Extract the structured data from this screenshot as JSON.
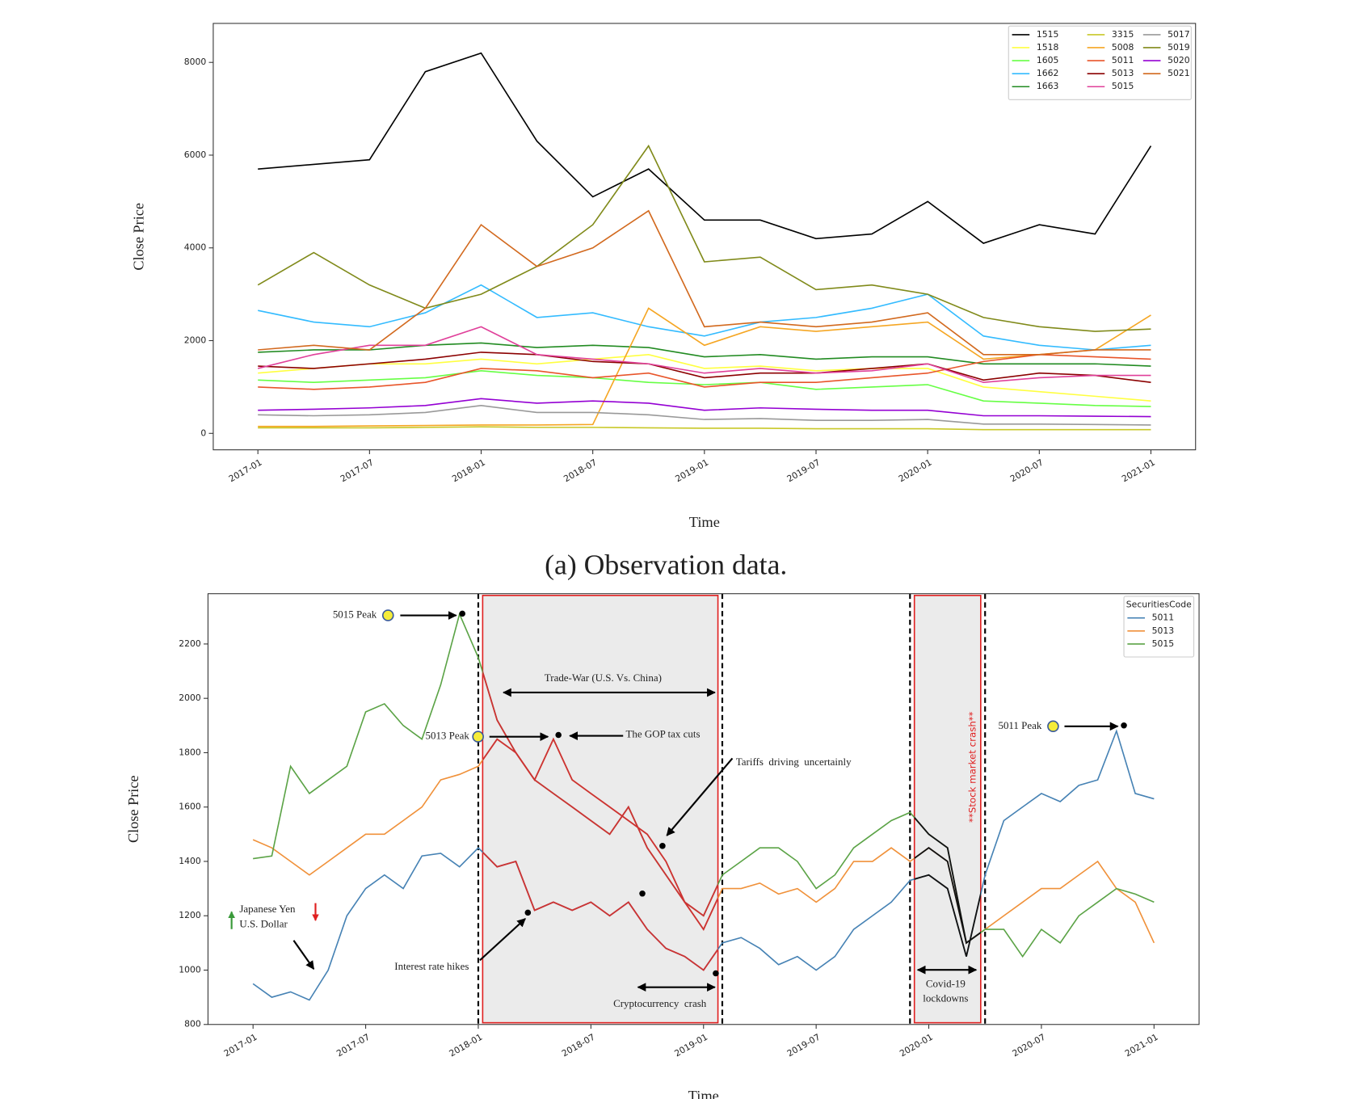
{
  "chart_data": [
    {
      "type": "line",
      "xlabel": "Time",
      "ylabel": "Close Price",
      "caption": "(a) Observation data.",
      "legend": "upper right",
      "x": [
        "2017-01",
        "2017-04",
        "2017-07",
        "2017-10",
        "2018-01",
        "2018-04",
        "2018-07",
        "2018-10",
        "2019-01",
        "2019-04",
        "2019-07",
        "2019-10",
        "2020-01",
        "2020-04",
        "2020-07",
        "2020-10",
        "2021-01"
      ],
      "xlim": [
        "2017-01",
        "2021-01"
      ],
      "xticks": [
        "2017-01",
        "2017-07",
        "2018-01",
        "2018-07",
        "2019-01",
        "2019-07",
        "2020-01",
        "2020-07",
        "2021-01"
      ],
      "ylim": [
        -355,
        8841
      ],
      "yticks": [
        0,
        2000,
        4000,
        6000,
        8000
      ],
      "series": [
        {
          "name": "1515",
          "color": "#000000",
          "values": [
            5700,
            5800,
            5900,
            7800,
            8200,
            6300,
            5100,
            5700,
            4600,
            4600,
            4200,
            4300,
            5000,
            4100,
            4500,
            4300,
            6200
          ]
        },
        {
          "name": "1518",
          "color": "#ffff40",
          "values": [
            1300,
            1400,
            1500,
            1500,
            1600,
            1500,
            1600,
            1700,
            1400,
            1450,
            1350,
            1400,
            1400,
            1000,
            900,
            800,
            700
          ]
        },
        {
          "name": "1605",
          "color": "#66ff44",
          "values": [
            1150,
            1100,
            1150,
            1200,
            1350,
            1250,
            1200,
            1100,
            1050,
            1100,
            950,
            1000,
            1050,
            700,
            650,
            600,
            580
          ]
        },
        {
          "name": "1662",
          "color": "#33bbff",
          "values": [
            2650,
            2400,
            2300,
            2600,
            3200,
            2500,
            2600,
            2300,
            2100,
            2400,
            2500,
            2700,
            3000,
            2100,
            1900,
            1800,
            1900
          ]
        },
        {
          "name": "1663",
          "color": "#228b22",
          "values": [
            1750,
            1800,
            1800,
            1900,
            1950,
            1850,
            1900,
            1850,
            1650,
            1700,
            1600,
            1650,
            1650,
            1500,
            1500,
            1500,
            1450
          ]
        },
        {
          "name": "3315",
          "color": "#c8c828",
          "values": [
            120,
            120,
            120,
            130,
            140,
            130,
            130,
            120,
            110,
            110,
            100,
            100,
            100,
            80,
            80,
            80,
            80
          ]
        },
        {
          "name": "5008",
          "color": "#f5a623",
          "values": [
            150,
            150,
            160,
            170,
            180,
            180,
            190,
            2700,
            1900,
            2300,
            2200,
            2300,
            2400,
            1600,
            1700,
            1800,
            2550
          ]
        },
        {
          "name": "5011",
          "color": "#e8552a",
          "values": [
            1000,
            950,
            1000,
            1100,
            1400,
            1350,
            1200,
            1300,
            1000,
            1100,
            1100,
            1200,
            1300,
            1550,
            1700,
            1650,
            1600
          ]
        },
        {
          "name": "5013",
          "color": "#8b0000",
          "values": [
            1450,
            1400,
            1500,
            1600,
            1750,
            1700,
            1550,
            1500,
            1200,
            1300,
            1300,
            1400,
            1500,
            1150,
            1300,
            1250,
            1100
          ]
        },
        {
          "name": "5015",
          "color": "#e0409a",
          "values": [
            1400,
            1700,
            1900,
            1900,
            2300,
            1700,
            1600,
            1500,
            1300,
            1400,
            1300,
            1350,
            1500,
            1100,
            1200,
            1250,
            1250
          ]
        },
        {
          "name": "5017",
          "color": "#999999",
          "values": [
            400,
            380,
            400,
            450,
            600,
            450,
            450,
            400,
            300,
            320,
            280,
            280,
            300,
            200,
            200,
            190,
            180
          ]
        },
        {
          "name": "5019",
          "color": "#808a1a",
          "values": [
            3200,
            3900,
            3200,
            2700,
            3000,
            3600,
            4500,
            6200,
            3700,
            3800,
            3100,
            3200,
            3000,
            2500,
            2300,
            2200,
            2250
          ]
        },
        {
          "name": "5020",
          "color": "#9400d3",
          "values": [
            500,
            520,
            550,
            600,
            750,
            650,
            700,
            650,
            500,
            550,
            520,
            500,
            500,
            380,
            380,
            370,
            360
          ]
        },
        {
          "name": "5021",
          "color": "#d2691e",
          "values": [
            1800,
            1900,
            1800,
            2700,
            4500,
            3600,
            4000,
            4800,
            2300,
            2400,
            2300,
            2400,
            2600,
            1700,
            1700,
            1800,
            1800
          ]
        }
      ]
    },
    {
      "type": "line",
      "xlabel": "Time",
      "ylabel": "Close Price",
      "legend": "upper right",
      "legend_title": "SecuritiesCode",
      "x": [
        "2017-01",
        "2017-02",
        "2017-03",
        "2017-04",
        "2017-05",
        "2017-06",
        "2017-07",
        "2017-08",
        "2017-09",
        "2017-10",
        "2017-11",
        "2017-12",
        "2018-01",
        "2018-02",
        "2018-03",
        "2018-04",
        "2018-05",
        "2018-06",
        "2018-07",
        "2018-08",
        "2018-09",
        "2018-10",
        "2018-11",
        "2018-12",
        "2019-01",
        "2019-02",
        "2019-03",
        "2019-04",
        "2019-05",
        "2019-06",
        "2019-07",
        "2019-08",
        "2019-09",
        "2019-10",
        "2019-11",
        "2019-12",
        "2020-01",
        "2020-02",
        "2020-03",
        "2020-04",
        "2020-05",
        "2020-06",
        "2020-07",
        "2020-08",
        "2020-09",
        "2020-10",
        "2020-11",
        "2020-12",
        "2021-01"
      ],
      "xlim": [
        "2017-01",
        "2021-01"
      ],
      "xticks": [
        "2017-01",
        "2017-07",
        "2018-01",
        "2018-07",
        "2019-01",
        "2019-07",
        "2020-01",
        "2020-07",
        "2021-01"
      ],
      "ylim": [
        800,
        2385
      ],
      "yticks": [
        800,
        1000,
        1200,
        1400,
        1600,
        1800,
        2000,
        2200
      ],
      "regions": [
        {
          "start": "2018-01",
          "end": "2019-02",
          "color": "#cc3333"
        },
        {
          "start": "2019-12",
          "end": "2020-04",
          "color": "#111111"
        }
      ],
      "series": [
        {
          "name": "5011",
          "color": "#4682b4",
          "values": [
            950,
            900,
            920,
            890,
            1000,
            1200,
            1300,
            1350,
            1300,
            1420,
            1430,
            1380,
            1450,
            1380,
            1400,
            1220,
            1250,
            1220,
            1250,
            1200,
            1250,
            1150,
            1080,
            1050,
            1000,
            1100,
            1120,
            1080,
            1020,
            1050,
            1000,
            1050,
            1150,
            1200,
            1250,
            1330,
            1350,
            1300,
            1050,
            1350,
            1550,
            1600,
            1650,
            1620,
            1680,
            1700,
            1880,
            1650,
            1630
          ]
        },
        {
          "name": "5013",
          "color": "#f0913a",
          "values": [
            1480,
            1450,
            1400,
            1350,
            1400,
            1450,
            1500,
            1500,
            1550,
            1600,
            1700,
            1720,
            1750,
            1850,
            1800,
            1700,
            1850,
            1700,
            1650,
            1600,
            1550,
            1500,
            1400,
            1250,
            1150,
            1300,
            1300,
            1320,
            1280,
            1300,
            1250,
            1300,
            1400,
            1400,
            1450,
            1400,
            1450,
            1400,
            1100,
            1150,
            1200,
            1250,
            1300,
            1300,
            1350,
            1400,
            1300,
            1250,
            1100
          ]
        },
        {
          "name": "5015",
          "color": "#5ba346",
          "values": [
            1410,
            1420,
            1750,
            1650,
            1700,
            1750,
            1950,
            1980,
            1900,
            1850,
            2050,
            2310,
            2150,
            1920,
            1800,
            1700,
            1650,
            1600,
            1550,
            1500,
            1600,
            1450,
            1350,
            1250,
            1200,
            1350,
            1400,
            1450,
            1450,
            1400,
            1300,
            1350,
            1450,
            1500,
            1550,
            1580,
            1500,
            1450,
            1100,
            1150,
            1150,
            1050,
            1150,
            1100,
            1200,
            1250,
            1300,
            1280,
            1250
          ]
        }
      ],
      "annotations": [
        "5015 Peak",
        "Trade-War (U.S. Vs. China)",
        "5013 Peak",
        "The GOP tax cuts",
        "Tariffs  driving  uncertainly",
        "Japanese Yen",
        "U.S. Dollar",
        "Interest rate hikes",
        "Cryptocurrency  crash",
        "Covid-19",
        "lockdowns",
        "**Stock market crash**",
        "5011 Peak"
      ]
    }
  ]
}
